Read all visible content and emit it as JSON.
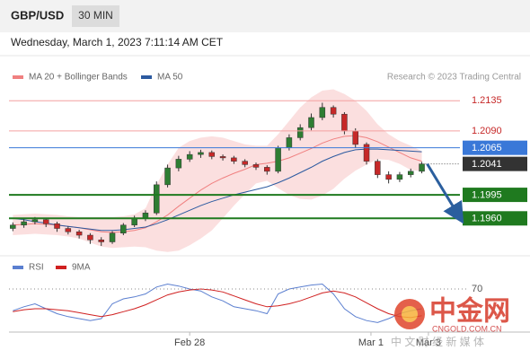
{
  "header": {
    "symbol": "GBP/USD",
    "timeframe": "30 MIN",
    "timestamp": "Wednesday, March 1, 2023 7:11:14 AM CET"
  },
  "watermark": {
    "logo": "中金网",
    "site": "CNGOLD.COM.CN",
    "tagline": "中 文 财 经 新 媒 体"
  },
  "chart_data": [
    {
      "type": "candlestick",
      "credit": "Research © 2023 Trading Central",
      "up_color": "#2e7d32",
      "down_color": "#c62828",
      "xlim": [
        -1,
        38.5
      ],
      "ylim": [
        1.1911,
        1.2158
      ],
      "xticks": [
        {
          "value": 16,
          "label": "Feb 28"
        },
        {
          "value": 32.4,
          "label": "Mar 1"
        },
        {
          "value": 37.6,
          "label": "Mar 3"
        }
      ],
      "open": [
        1.1945,
        1.195,
        1.1955,
        1.1958,
        1.1952,
        1.1945,
        1.194,
        1.1935,
        1.1928,
        1.1925,
        1.1938,
        1.195,
        1.196,
        1.1968,
        1.201,
        1.2035,
        1.2048,
        1.2055,
        1.2058,
        1.2052,
        1.205,
        1.2045,
        1.204,
        1.2036,
        1.203,
        1.2065,
        1.208,
        1.2095,
        1.211,
        1.2125,
        1.2115,
        1.209,
        1.207,
        1.2045,
        1.2025,
        1.2018,
        1.2025,
        1.203
      ],
      "high": [
        1.1954,
        1.1959,
        1.1962,
        1.1961,
        1.1955,
        1.1948,
        1.1943,
        1.1938,
        1.1932,
        1.1941,
        1.1953,
        1.1964,
        1.1972,
        1.2015,
        1.204,
        1.2053,
        1.206,
        1.2062,
        1.2061,
        1.2055,
        1.2053,
        1.2048,
        1.2043,
        1.2039,
        1.2068,
        1.2085,
        1.21,
        1.2116,
        1.2132,
        1.2128,
        1.2118,
        1.2094,
        1.2073,
        1.2048,
        1.203,
        1.2029,
        1.2034,
        1.2044
      ],
      "low": [
        1.1941,
        1.1946,
        1.1951,
        1.1947,
        1.194,
        1.1936,
        1.193,
        1.1922,
        1.1919,
        1.1922,
        1.1935,
        1.1947,
        1.1956,
        1.1965,
        1.2006,
        1.203,
        1.2044,
        1.205,
        1.2048,
        1.2046,
        1.2041,
        1.2036,
        1.2032,
        1.2025,
        1.2027,
        1.2061,
        1.2076,
        1.2091,
        1.2106,
        1.211,
        1.2085,
        1.2065,
        1.204,
        1.202,
        1.2012,
        1.2014,
        1.2021,
        1.2027
      ],
      "close": [
        1.195,
        1.1955,
        1.1958,
        1.1952,
        1.1945,
        1.194,
        1.1935,
        1.1928,
        1.1925,
        1.1938,
        1.195,
        1.196,
        1.1968,
        1.201,
        1.2035,
        1.2048,
        1.2055,
        1.2058,
        1.2052,
        1.205,
        1.2045,
        1.204,
        1.2036,
        1.203,
        1.2065,
        1.208,
        1.2095,
        1.211,
        1.2125,
        1.2115,
        1.209,
        1.207,
        1.2045,
        1.2025,
        1.2018,
        1.2025,
        1.203,
        1.2041
      ],
      "bands": {
        "color": "#f8c9c9",
        "upper": [
          1.1965,
          1.1966,
          1.1967,
          1.1966,
          1.1965,
          1.1963,
          1.1962,
          1.1962,
          1.1962,
          1.1962,
          1.1963,
          1.1966,
          1.1975,
          1.201,
          1.204,
          1.2065,
          1.2075,
          1.208,
          1.2082,
          1.208,
          1.2075,
          1.207,
          1.2068,
          1.2068,
          1.2085,
          1.2105,
          1.2125,
          1.214,
          1.215,
          1.2152,
          1.2145,
          1.2135,
          1.212,
          1.21,
          1.2085,
          1.2075,
          1.2068,
          1.206
        ],
        "lower": [
          1.1935,
          1.1936,
          1.1937,
          1.1936,
          1.1935,
          1.1933,
          1.193,
          1.1924,
          1.1918,
          1.1916,
          1.1917,
          1.1918,
          1.1917,
          1.1912,
          1.191,
          1.1912,
          1.192,
          1.193,
          1.1942,
          1.196,
          1.1979,
          1.1996,
          1.2012,
          1.2016,
          1.2005,
          1.1995,
          1.1989,
          1.1988,
          1.1994,
          1.2004,
          1.2019,
          1.2031,
          1.204,
          1.2048,
          1.2047,
          1.2041,
          1.2032,
          1.203
        ]
      },
      "series": [
        {
          "name": "MA 20 + Bollinger Bands",
          "color": "#f08080",
          "values": [
            1.195,
            1.1951,
            1.1952,
            1.1951,
            1.195,
            1.1948,
            1.1946,
            1.1943,
            1.194,
            1.1939,
            1.194,
            1.1942,
            1.1946,
            1.1955,
            1.1965,
            1.1978,
            1.199,
            1.2002,
            1.2012,
            1.202,
            1.2027,
            1.2033,
            1.204,
            1.2042,
            1.2045,
            1.205,
            1.2057,
            1.2064,
            1.2072,
            1.2078,
            1.2082,
            1.2083,
            1.208,
            1.2074,
            1.2066,
            1.2058,
            1.205,
            1.2045
          ]
        },
        {
          "name": "MA 50",
          "color": "#2c5aa0",
          "values": [
            1.196,
            1.1958,
            1.1955,
            1.1953,
            1.195,
            1.1948,
            1.1946,
            1.1944,
            1.1942,
            1.1942,
            1.1943,
            1.1945,
            1.1947,
            1.1952,
            1.1958,
            1.1965,
            1.1972,
            1.1979,
            1.1985,
            1.199,
            1.1995,
            1.1999,
            1.2003,
            1.2007,
            1.2013,
            1.202,
            1.2028,
            1.2036,
            1.2045,
            1.2052,
            1.2058,
            1.2062,
            1.2063,
            1.2063,
            1.2062,
            1.2061,
            1.206,
            1.2059
          ]
        }
      ],
      "levels": [
        {
          "value": 1.2135,
          "label": "1.2135",
          "color": "#f4a0a0",
          "style": "text"
        },
        {
          "value": 1.209,
          "label": "1.2090",
          "color": "#f4a0a0",
          "style": "text"
        },
        {
          "value": 1.2065,
          "label": "1.2065",
          "color": "#3a78d8",
          "style": "badge"
        },
        {
          "value": 1.2041,
          "label": "1.2041",
          "color": "#333333",
          "style": "price"
        },
        {
          "value": 1.1995,
          "label": "1.1995",
          "color": "#1f7a1f",
          "style": "badge"
        },
        {
          "value": 1.196,
          "label": "1.1960",
          "color": "#1f7a1f",
          "style": "badge"
        }
      ]
    },
    {
      "type": "line",
      "ylim": [
        25,
        85
      ],
      "xlim": [
        -1,
        38.5
      ],
      "yticks": [
        70
      ],
      "series": [
        {
          "name": "RSI",
          "color": "#5b7fd0",
          "values": [
            48,
            52,
            55,
            50,
            45,
            42,
            40,
            38,
            40,
            55,
            60,
            62,
            65,
            72,
            75,
            73,
            70,
            68,
            62,
            58,
            52,
            50,
            48,
            45,
            65,
            70,
            72,
            74,
            75,
            65,
            50,
            42,
            38,
            36,
            40,
            45,
            48,
            50
          ]
        },
        {
          "name": "9MA",
          "color": "#d02020",
          "values": [
            47,
            49,
            50,
            50,
            49,
            48,
            46,
            44,
            42,
            44,
            47,
            50,
            54,
            59,
            64,
            67,
            69,
            70,
            69,
            67,
            63,
            59,
            55,
            52,
            53,
            55,
            58,
            62,
            66,
            68,
            66,
            62,
            56,
            50,
            45,
            42,
            41,
            43
          ]
        }
      ]
    }
  ]
}
